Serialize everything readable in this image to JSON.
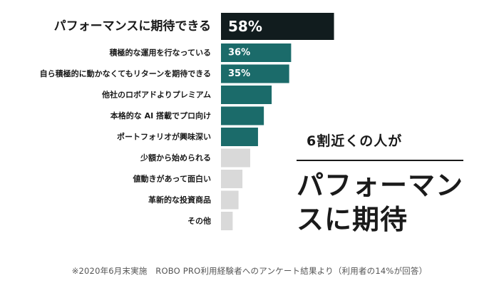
{
  "chart_data": {
    "type": "bar",
    "orientation": "horizontal",
    "categories": [
      "パフォーマンスに期待できる",
      "積極的な運用を行なっている",
      "自ら積極的に動かなくてもリターンを期待できる",
      "他社のロボアドよりプレミアム",
      "本格的な AI 搭載でプロ向け",
      "ポートフォリオが興味深い",
      "少額から始められる",
      "値動きがあって面白い",
      "革新的な投資商品",
      "その他"
    ],
    "values": [
      58,
      36,
      35,
      26,
      22,
      19,
      15,
      11,
      9,
      6
    ],
    "value_labels": [
      "58%",
      "36%",
      "35%",
      "",
      "",
      "",
      "",
      "",
      "",
      ""
    ],
    "bar_colors": [
      "#111c1e",
      "#1b6b6a",
      "#1b6b6a",
      "#1b6b6a",
      "#1b6b6a",
      "#1b6b6a",
      "#d9d9d9",
      "#d9d9d9",
      "#d9d9d9",
      "#d9d9d9"
    ],
    "xlim": [
      0,
      60
    ],
    "grid": false,
    "legend": "none"
  },
  "callout": {
    "lead": "6割近くの人が",
    "main": "パフォーマンスに期待"
  },
  "footnote": "※2020年6月末実施　ROBO PRO利用経験者へのアンケート結果より（利用者の14%が回答）"
}
